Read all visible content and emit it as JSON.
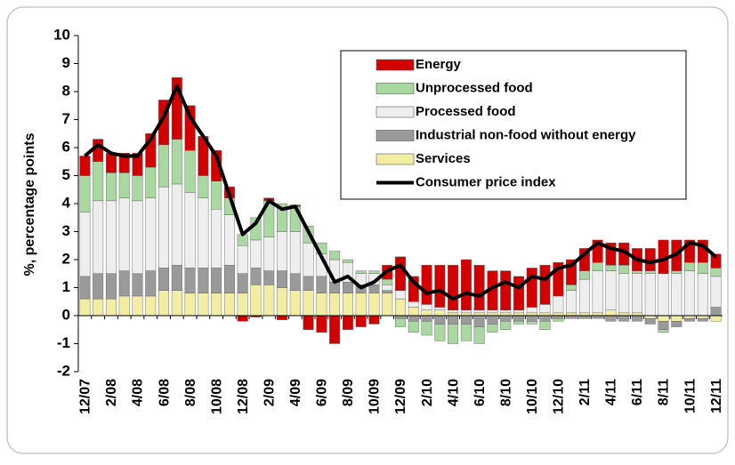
{
  "chart_data": {
    "type": "bar",
    "stacked": true,
    "ylabel": "%, percentage points",
    "ylim": [
      -2,
      10
    ],
    "yticks": [
      -2,
      -1,
      0,
      1,
      2,
      3,
      4,
      5,
      6,
      7,
      8,
      9,
      10
    ],
    "legend": "upper right",
    "categories": [
      "12/07",
      null,
      "2/08",
      null,
      "4/08",
      null,
      "6/08",
      null,
      "8/08",
      null,
      "10/08",
      null,
      "12/08",
      null,
      "2/09",
      null,
      "4/09",
      null,
      "6/09",
      null,
      "8/09",
      null,
      "10/09",
      null,
      "12/09",
      null,
      "2/10",
      null,
      "4/10",
      null,
      "6/10",
      null,
      "8/10",
      null,
      "10/10",
      null,
      "12/10",
      null,
      "2/11",
      null,
      "4/11",
      null,
      "6/11",
      null,
      "8/11",
      null,
      "10/11",
      null,
      "12/11"
    ],
    "series": [
      {
        "name": "Services",
        "color": "#f2eda2",
        "values": [
          0.6,
          0.6,
          0.6,
          0.7,
          0.7,
          0.7,
          0.9,
          0.9,
          0.8,
          0.8,
          0.8,
          0.8,
          0.8,
          1.1,
          1.1,
          1.0,
          0.9,
          0.9,
          0.8,
          0.8,
          0.8,
          0.8,
          0.8,
          0.8,
          0.6,
          0.3,
          0.2,
          0.2,
          0.1,
          0.1,
          0.1,
          0.1,
          0.1,
          0.1,
          0.1,
          0.1,
          0.1,
          0.1,
          0.1,
          0.1,
          0.2,
          0.1,
          0.1,
          -0.1,
          -0.2,
          -0.2,
          -0.1,
          -0.1,
          -0.2
        ]
      },
      {
        "name": "Industrial non-food without energy",
        "color": "#9a9a9a",
        "values": [
          0.8,
          0.9,
          0.9,
          0.9,
          0.8,
          0.9,
          0.8,
          0.9,
          0.9,
          0.9,
          0.9,
          1.0,
          0.7,
          0.6,
          0.5,
          0.6,
          0.6,
          0.5,
          0.6,
          0.4,
          0.4,
          0.3,
          0.3,
          0.1,
          -0.1,
          -0.2,
          -0.2,
          -0.3,
          -0.3,
          -0.3,
          -0.4,
          -0.3,
          -0.2,
          -0.2,
          -0.2,
          -0.2,
          -0.1,
          -0.1,
          -0.1,
          -0.1,
          -0.2,
          -0.2,
          -0.2,
          -0.2,
          -0.3,
          -0.2,
          -0.1,
          -0.1,
          0.3
        ]
      },
      {
        "name": "Processed food",
        "color": "#eeeeee",
        "values": [
          2.3,
          2.6,
          2.6,
          2.6,
          2.6,
          2.6,
          2.9,
          2.9,
          2.7,
          2.5,
          2.1,
          1.8,
          1.0,
          1.0,
          1.2,
          1.4,
          1.5,
          1.2,
          0.8,
          0.8,
          0.7,
          0.4,
          0.4,
          0.2,
          0.3,
          0.2,
          0.2,
          0.1,
          0.1,
          0.1,
          0.1,
          0.1,
          0.1,
          0.1,
          0.2,
          0.3,
          0.6,
          0.8,
          1.2,
          1.5,
          1.4,
          1.4,
          1.4,
          1.5,
          1.5,
          1.5,
          1.6,
          1.5,
          1.1
        ]
      },
      {
        "name": "Unprocessed food",
        "color": "#a9d9a1",
        "values": [
          1.3,
          1.4,
          1.0,
          0.9,
          0.9,
          1.1,
          1.5,
          1.6,
          1.5,
          0.8,
          1.0,
          0.6,
          0.4,
          0.8,
          1.3,
          1.0,
          0.9,
          0.6,
          0.4,
          0.3,
          0.1,
          0.1,
          0.1,
          0.2,
          -0.3,
          -0.4,
          -0.5,
          -0.6,
          -0.7,
          -0.6,
          -0.6,
          -0.3,
          -0.3,
          -0.1,
          -0.1,
          -0.3,
          -0.1,
          0.2,
          0.3,
          0.3,
          0.2,
          0.3,
          0.1,
          0.1,
          -0.1,
          0.1,
          0.3,
          0.4,
          0.3
        ]
      },
      {
        "name": "Energy",
        "color": "#d40000",
        "values": [
          0.7,
          0.8,
          0.7,
          0.7,
          0.8,
          1.2,
          1.6,
          2.2,
          1.6,
          1.4,
          1.1,
          0.4,
          -0.2,
          -0.05,
          0.1,
          -0.15,
          0.05,
          -0.5,
          -0.6,
          -1.0,
          -0.5,
          -0.4,
          -0.3,
          0.5,
          1.2,
          0.9,
          1.4,
          1.5,
          1.6,
          1.8,
          1.6,
          1.4,
          1.4,
          1.2,
          1.4,
          1.4,
          1.2,
          0.9,
          0.8,
          0.8,
          0.8,
          0.8,
          0.8,
          0.8,
          1.2,
          1.1,
          0.8,
          0.8,
          0.5
        ]
      },
      {
        "name": "Consumer price index",
        "color": "#000000",
        "kind": "line",
        "values": [
          5.7,
          6.1,
          5.8,
          5.7,
          5.7,
          6.3,
          7.1,
          8.2,
          7.1,
          6.4,
          5.7,
          4.3,
          2.9,
          3.3,
          4.1,
          3.8,
          3.9,
          3.0,
          2.1,
          1.2,
          1.4,
          1.0,
          1.2,
          1.6,
          1.8,
          1.2,
          0.8,
          0.9,
          0.6,
          0.8,
          0.7,
          1.0,
          1.2,
          1.0,
          1.4,
          1.3,
          1.7,
          1.8,
          2.2,
          2.6,
          2.4,
          2.3,
          2.0,
          1.9,
          2.0,
          2.2,
          2.6,
          2.5,
          2.1
        ]
      }
    ]
  }
}
